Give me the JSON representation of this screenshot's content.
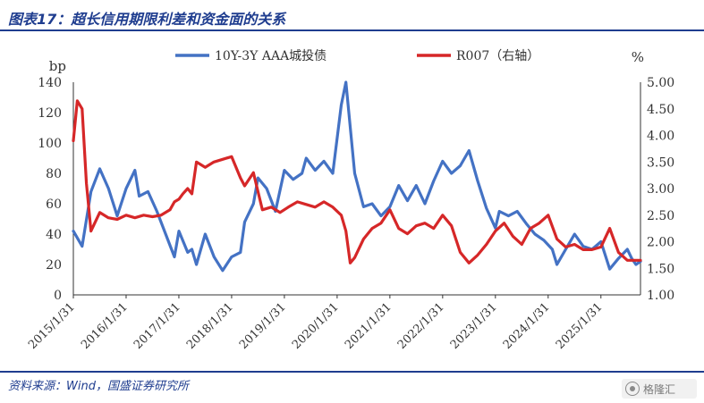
{
  "header": {
    "title": "图表17：超长信用期限利差和资金面的关系"
  },
  "footer": {
    "source": "资料来源：Wind，国盛证券研究所",
    "watermark_text": "格隆汇"
  },
  "colors": {
    "accent": "#1f3d8f",
    "series_blue": "#4472c4",
    "series_red": "#d62728"
  },
  "chart_data": {
    "type": "line",
    "left_axis": {
      "unit": "bp",
      "ylim": [
        0,
        140
      ],
      "ticks": [
        "0",
        "20",
        "40",
        "60",
        "80",
        "100",
        "120",
        "140"
      ]
    },
    "right_axis": {
      "unit": "%",
      "ylim": [
        1.0,
        5.0
      ],
      "ticks": [
        "1.00",
        "1.50",
        "2.00",
        "2.50",
        "3.00",
        "3.50",
        "4.00",
        "4.50",
        "5.00"
      ]
    },
    "x_axis": {
      "range": [
        "2015/1/31",
        "2025/10/31"
      ],
      "ticks": [
        "2015/1/31",
        "2016/1/31",
        "2017/1/31",
        "2018/1/31",
        "2019/1/31",
        "2020/1/31",
        "2021/1/31",
        "2022/1/31",
        "2023/1/31",
        "2024/1/31",
        "2025/1/31"
      ]
    },
    "legend": {
      "placement": "top"
    },
    "grid": false,
    "series": [
      {
        "name": "10Y-3Y AAA城投债",
        "axis": "left",
        "color": "#4472c4",
        "points": [
          [
            "2015/1/31",
            42
          ],
          [
            "2015/3/31",
            32
          ],
          [
            "2015/5/31",
            68
          ],
          [
            "2015/7/31",
            83
          ],
          [
            "2015/9/31",
            70
          ],
          [
            "2015/11/30",
            52
          ],
          [
            "2016/1/31",
            70
          ],
          [
            "2016/3/31",
            82
          ],
          [
            "2016/4/30",
            65
          ],
          [
            "2016/6/30",
            68
          ],
          [
            "2016/8/31",
            55
          ],
          [
            "2016/10/31",
            40
          ],
          [
            "2016/12/31",
            25
          ],
          [
            "2017/1/31",
            42
          ],
          [
            "2017/3/31",
            28
          ],
          [
            "2017/4/30",
            30
          ],
          [
            "2017/5/31",
            20
          ],
          [
            "2017/7/31",
            40
          ],
          [
            "2017/9/31",
            25
          ],
          [
            "2017/11/30",
            16
          ],
          [
            "2018/1/31",
            25
          ],
          [
            "2018/3/31",
            28
          ],
          [
            "2018/4/30",
            48
          ],
          [
            "2018/6/30",
            60
          ],
          [
            "2018/7/31",
            77
          ],
          [
            "2018/9/30",
            70
          ],
          [
            "2018/11/30",
            55
          ],
          [
            "2019/1/31",
            82
          ],
          [
            "2019/3/31",
            76
          ],
          [
            "2019/5/31",
            80
          ],
          [
            "2019/6/30",
            90
          ],
          [
            "2019/8/31",
            82
          ],
          [
            "2019/10/31",
            88
          ],
          [
            "2019/12/31",
            80
          ],
          [
            "2020/2/29",
            125
          ],
          [
            "2020/3/31",
            140
          ],
          [
            "2020/5/31",
            80
          ],
          [
            "2020/7/31",
            58
          ],
          [
            "2020/9/30",
            60
          ],
          [
            "2020/11/30",
            52
          ],
          [
            "2021/1/31",
            58
          ],
          [
            "2021/3/31",
            72
          ],
          [
            "2021/5/31",
            62
          ],
          [
            "2021/7/31",
            72
          ],
          [
            "2021/9/30",
            60
          ],
          [
            "2021/11/30",
            75
          ],
          [
            "2022/1/31",
            88
          ],
          [
            "2022/3/31",
            80
          ],
          [
            "2022/5/31",
            85
          ],
          [
            "2022/7/31",
            95
          ],
          [
            "2022/9/30",
            75
          ],
          [
            "2022/11/30",
            57
          ],
          [
            "2023/1/31",
            44
          ],
          [
            "2023/2/28",
            55
          ],
          [
            "2023/4/30",
            52
          ],
          [
            "2023/6/30",
            55
          ],
          [
            "2023/8/31",
            47
          ],
          [
            "2023/10/31",
            40
          ],
          [
            "2023/12/31",
            36
          ],
          [
            "2024/2/29",
            30
          ],
          [
            "2024/3/31",
            20
          ],
          [
            "2024/5/31",
            30
          ],
          [
            "2024/7/31",
            40
          ],
          [
            "2024/9/30",
            32
          ],
          [
            "2024/11/30",
            30
          ],
          [
            "2025/1/31",
            35
          ],
          [
            "2025/3/31",
            17
          ],
          [
            "2025/5/31",
            24
          ],
          [
            "2025/7/31",
            30
          ],
          [
            "2025/8/31",
            24
          ],
          [
            "2025/9/30",
            20
          ],
          [
            "2025/10/31",
            22
          ]
        ]
      },
      {
        "name": "R007（右轴）",
        "axis": "right",
        "color": "#d62728",
        "points": [
          [
            "2015/1/31",
            3.9
          ],
          [
            "2015/2/28",
            4.65
          ],
          [
            "2015/3/31",
            4.5
          ],
          [
            "2015/4/30",
            3.1
          ],
          [
            "2015/5/31",
            2.2
          ],
          [
            "2015/7/31",
            2.55
          ],
          [
            "2015/9/30",
            2.45
          ],
          [
            "2015/11/30",
            2.42
          ],
          [
            "2016/1/31",
            2.5
          ],
          [
            "2016/3/31",
            2.45
          ],
          [
            "2016/5/31",
            2.5
          ],
          [
            "2016/7/31",
            2.47
          ],
          [
            "2016/9/30",
            2.5
          ],
          [
            "2016/11/30",
            2.6
          ],
          [
            "2016/12/31",
            2.75
          ],
          [
            "2017/1/31",
            2.8
          ],
          [
            "2017/2/28",
            2.9
          ],
          [
            "2017/3/31",
            3.0
          ],
          [
            "2017/4/30",
            2.9
          ],
          [
            "2017/5/31",
            3.5
          ],
          [
            "2017/7/31",
            3.4
          ],
          [
            "2017/9/30",
            3.5
          ],
          [
            "2017/11/30",
            3.55
          ],
          [
            "2018/1/31",
            3.6
          ],
          [
            "2018/3/31",
            3.2
          ],
          [
            "2018/4/30",
            3.05
          ],
          [
            "2018/6/30",
            3.3
          ],
          [
            "2018/8/31",
            2.6
          ],
          [
            "2018/10/31",
            2.65
          ],
          [
            "2018/12/31",
            2.55
          ],
          [
            "2019/2/28",
            2.65
          ],
          [
            "2019/4/30",
            2.75
          ],
          [
            "2019/6/30",
            2.7
          ],
          [
            "2019/8/31",
            2.65
          ],
          [
            "2019/10/31",
            2.75
          ],
          [
            "2019/12/31",
            2.65
          ],
          [
            "2020/2/29",
            2.5
          ],
          [
            "2020/3/31",
            2.2
          ],
          [
            "2020/4/30",
            1.6
          ],
          [
            "2020/5/31",
            1.7
          ],
          [
            "2020/7/31",
            2.05
          ],
          [
            "2020/9/30",
            2.25
          ],
          [
            "2020/11/30",
            2.35
          ],
          [
            "2021/1/31",
            2.6
          ],
          [
            "2021/3/31",
            2.25
          ],
          [
            "2021/5/31",
            2.15
          ],
          [
            "2021/7/31",
            2.3
          ],
          [
            "2021/9/30",
            2.35
          ],
          [
            "2021/11/30",
            2.25
          ],
          [
            "2022/1/31",
            2.5
          ],
          [
            "2022/3/31",
            2.3
          ],
          [
            "2022/5/31",
            1.8
          ],
          [
            "2022/7/31",
            1.6
          ],
          [
            "2022/9/30",
            1.75
          ],
          [
            "2022/11/30",
            1.95
          ],
          [
            "2023/1/31",
            2.2
          ],
          [
            "2023/3/31",
            2.35
          ],
          [
            "2023/5/31",
            2.1
          ],
          [
            "2023/7/31",
            1.95
          ],
          [
            "2023/9/30",
            2.25
          ],
          [
            "2023/11/30",
            2.35
          ],
          [
            "2024/1/31",
            2.5
          ],
          [
            "2024/3/31",
            2.05
          ],
          [
            "2024/5/31",
            1.9
          ],
          [
            "2024/7/31",
            1.95
          ],
          [
            "2024/9/30",
            1.85
          ],
          [
            "2024/11/30",
            1.85
          ],
          [
            "2025/1/31",
            1.9
          ],
          [
            "2025/3/31",
            2.25
          ],
          [
            "2025/5/31",
            1.8
          ],
          [
            "2025/7/31",
            1.65
          ],
          [
            "2025/9/30",
            1.65
          ],
          [
            "2025/10/31",
            1.65
          ]
        ]
      }
    ]
  }
}
